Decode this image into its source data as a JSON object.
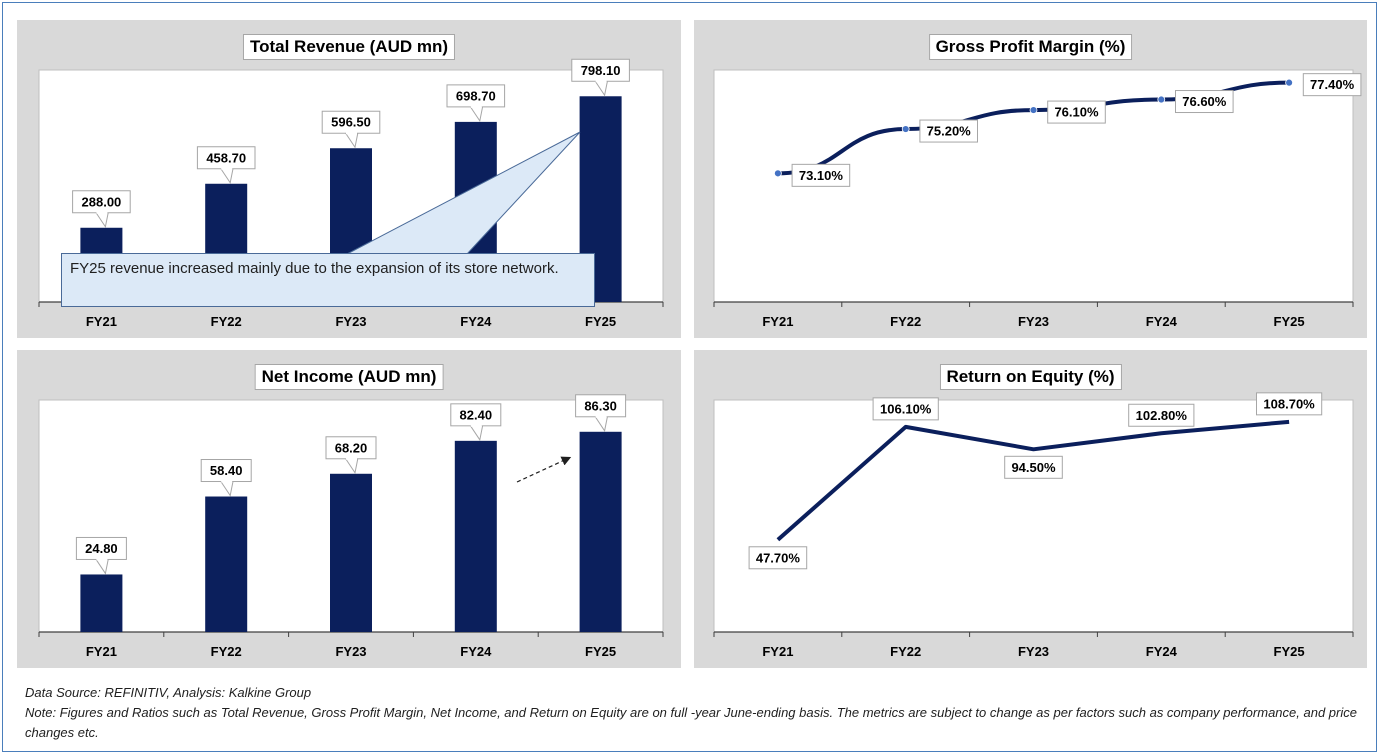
{
  "colors": {
    "bar": "#0b1f5c",
    "line": "#0b1f5c",
    "panel_bg": "#d9d9d9",
    "plot_bg": "#ffffff",
    "callout_fill": "#dce9f7",
    "callout_border": "#4a6a98",
    "marker": "#4472c4"
  },
  "chart_data": [
    {
      "id": "revenue",
      "type": "bar",
      "title": "Total Revenue (AUD mn)",
      "categories": [
        "FY21",
        "FY22",
        "FY23",
        "FY24",
        "FY25"
      ],
      "values": [
        288.0,
        458.7,
        596.5,
        698.7,
        798.1
      ],
      "labels": [
        "288.00",
        "458.70",
        "596.50",
        "698.70",
        "798.10"
      ],
      "ylim": [
        0,
        900
      ],
      "xlabel": "",
      "ylabel": "",
      "annotation": "FY25 revenue increased mainly due to the expansion of its store network."
    },
    {
      "id": "gpm",
      "type": "line",
      "title": "Gross Profit Margin (%)",
      "categories": [
        "FY21",
        "FY22",
        "FY23",
        "FY24",
        "FY25"
      ],
      "values": [
        73.1,
        75.2,
        76.1,
        76.6,
        77.4
      ],
      "labels": [
        "73.10%",
        "75.20%",
        "76.10%",
        "76.60%",
        "77.40%"
      ],
      "ylim": [
        67.0,
        78.0
      ],
      "xlabel": "",
      "ylabel": ""
    },
    {
      "id": "netincome",
      "type": "bar",
      "title": "Net Income (AUD mn)",
      "categories": [
        "FY21",
        "FY22",
        "FY23",
        "FY24",
        "FY25"
      ],
      "values": [
        24.8,
        58.4,
        68.2,
        82.4,
        86.3
      ],
      "labels": [
        "24.80",
        "58.40",
        "68.20",
        "82.40",
        "86.30"
      ],
      "ylim": [
        0,
        100
      ],
      "xlabel": "",
      "ylabel": ""
    },
    {
      "id": "roe",
      "type": "line",
      "title": "Return on Equity (%)",
      "categories": [
        "FY21",
        "FY22",
        "FY23",
        "FY24",
        "FY25"
      ],
      "values": [
        47.7,
        106.1,
        94.5,
        102.8,
        108.7
      ],
      "labels": [
        "47.70%",
        "106.10%",
        "94.50%",
        "102.80%",
        "108.70%"
      ],
      "ylim": [
        0,
        120
      ],
      "xlabel": "",
      "ylabel": ""
    }
  ],
  "footer": {
    "source": "Data Source: REFINITIV, Analysis: Kalkine Group",
    "note": "Note: Figures and Ratios such as Total Revenue, Gross Profit Margin, Net Income, and Return on Equity are on full -year June-ending basis. The metrics are subject to change as per factors such as company performance, and price changes etc."
  }
}
